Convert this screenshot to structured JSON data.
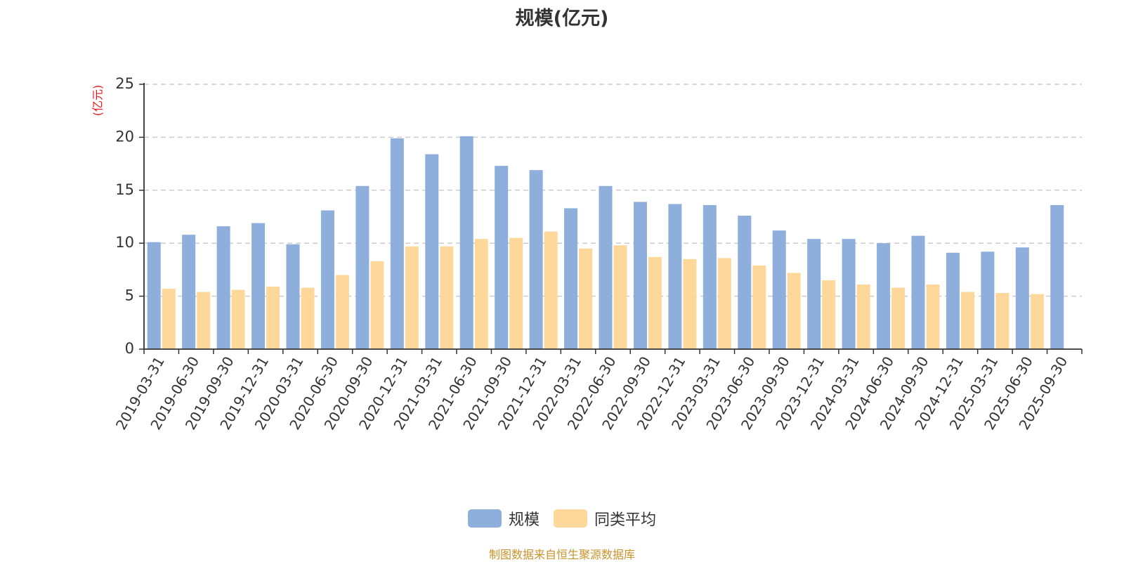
{
  "chart_data": {
    "type": "bar",
    "title": "规模(亿元)",
    "ylabel": "(亿元)",
    "xlabel": "",
    "ylim": [
      0,
      25
    ],
    "yticks": [
      0,
      5,
      10,
      15,
      20,
      25
    ],
    "grid": true,
    "legend_position": "bottom-center",
    "categories": [
      "2019-03-31",
      "2019-06-30",
      "2019-09-30",
      "2019-12-31",
      "2020-03-31",
      "2020-06-30",
      "2020-09-30",
      "2020-12-31",
      "2021-03-31",
      "2021-06-30",
      "2021-09-30",
      "2021-12-31",
      "2022-03-31",
      "2022-06-30",
      "2022-09-30",
      "2022-12-31",
      "2023-03-31",
      "2023-06-30",
      "2023-09-30",
      "2023-12-31",
      "2024-03-31",
      "2024-06-30",
      "2024-09-30",
      "2024-12-31",
      "2025-03-31",
      "2025-06-30",
      "2025-09-30"
    ],
    "series": [
      {
        "name": "规模",
        "color": "#8eaedb",
        "values": [
          10.1,
          10.8,
          11.6,
          11.9,
          9.9,
          13.1,
          15.4,
          19.9,
          18.4,
          20.1,
          17.3,
          16.9,
          13.3,
          15.4,
          13.9,
          13.7,
          13.6,
          12.6,
          11.2,
          10.4,
          10.4,
          10.0,
          10.7,
          9.1,
          9.2,
          9.6,
          13.6
        ]
      },
      {
        "name": "同类平均",
        "color": "#fed89a",
        "values": [
          5.7,
          5.4,
          5.6,
          5.9,
          5.8,
          7.0,
          8.3,
          9.7,
          9.7,
          10.4,
          10.5,
          11.1,
          9.5,
          9.8,
          8.7,
          8.5,
          8.6,
          7.9,
          7.2,
          6.5,
          6.1,
          5.8,
          6.1,
          5.4,
          5.3,
          5.2,
          null
        ]
      }
    ]
  },
  "footer": {
    "source": "制图数据来自恒生聚源数据库"
  }
}
